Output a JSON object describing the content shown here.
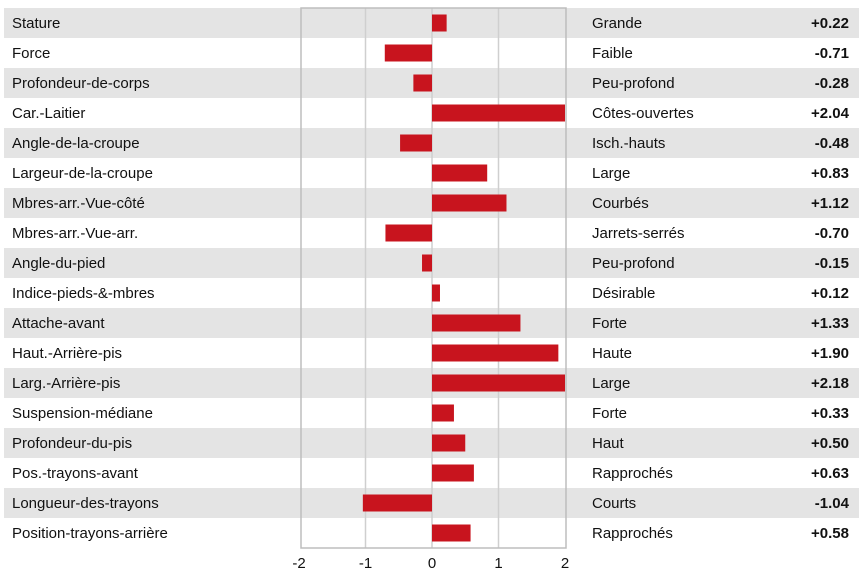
{
  "chart_data": {
    "type": "bar",
    "orientation": "horizontal",
    "categories": [
      "Stature",
      "Force",
      "Profondeur-de-corps",
      "Car.-Laitier",
      "Angle-de-la-croupe",
      "Largeur-de-la-croupe",
      "Mbres-arr.-Vue-côté",
      "Mbres-arr.-Vue-arr.",
      "Angle-du-pied",
      "Indice-pieds-&-mbres",
      "Attache-avant",
      "Haut.-Arrière-pis",
      "Larg.-Arrière-pis",
      "Suspension-médiane",
      "Profondeur-du-pis",
      "Pos.-trayons-avant",
      "Longueur-des-trayons",
      "Position-trayons-arrière"
    ],
    "values": [
      0.22,
      -0.71,
      -0.28,
      2.04,
      -0.48,
      0.83,
      1.12,
      -0.7,
      -0.15,
      0.12,
      1.33,
      1.9,
      2.18,
      0.33,
      0.5,
      0.63,
      -1.04,
      0.58
    ],
    "value_labels": [
      "+0.22",
      "-0.71",
      "-0.28",
      "+2.04",
      "-0.48",
      "+0.83",
      "+1.12",
      "-0.70",
      "-0.15",
      "+0.12",
      "+1.33",
      "+1.90",
      "+2.18",
      "+0.33",
      "+0.50",
      "+0.63",
      "-1.04",
      "+0.58"
    ],
    "descriptors": [
      "Grande",
      "Faible",
      "Peu-profond",
      "Côtes-ouvertes",
      "Isch.-hauts",
      "Large",
      "Courbés",
      "Jarrets-serrés",
      "Peu-profond",
      "Désirable",
      "Forte",
      "Haute",
      "Large",
      "Forte",
      "Haut",
      "Rapprochés",
      "Courts",
      "Rapprochés"
    ],
    "xlim": [
      -2,
      2
    ],
    "x_ticks": [
      "-2",
      "-1",
      "0",
      "1",
      "2"
    ],
    "grid": true,
    "colors": {
      "bar": "#c8141e",
      "band": "#e4e4e4",
      "grid": "#cfcfcf",
      "frame": "#bdbdbd"
    }
  }
}
